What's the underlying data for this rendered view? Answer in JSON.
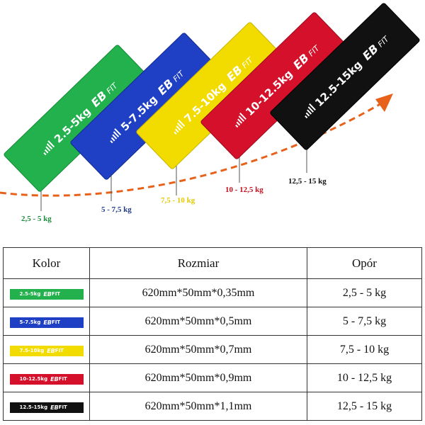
{
  "bands": [
    {
      "label": "2.5-5kg",
      "brand": "EB",
      "brand_suffix": "FIT",
      "color": "#22b14c",
      "resistance": "2,5 - 5 kg",
      "resistance_color": "#1b8a3a"
    },
    {
      "label": "5-7.5kg",
      "brand": "EB",
      "brand_suffix": "FIT",
      "color": "#1f3fc4",
      "resistance": "5 - 7,5 kg",
      "resistance_color": "#1f3a8a"
    },
    {
      "label": "7.5-10kg",
      "brand": "EB",
      "brand_suffix": "FIT",
      "color": "#f2dc00",
      "resistance": "7,5 - 10 kg",
      "resistance_color": "#e6c800"
    },
    {
      "label": "10-12.5kg",
      "brand": "EB",
      "brand_suffix": "FIT",
      "color": "#d5102a",
      "resistance": "10 - 12,5 kg",
      "resistance_color": "#c8101e"
    },
    {
      "label": "12.5-15kg",
      "brand": "EB",
      "brand_suffix": "FIT",
      "color": "#111111",
      "resistance": "12,5 - 15 kg",
      "resistance_color": "#111111"
    }
  ],
  "arrow_color": "#e8611a",
  "table": {
    "headers": [
      "Kolor",
      "Rozmiar",
      "Opór"
    ],
    "rows": [
      {
        "swatch_label": "2.5-5kg",
        "brand": "EB",
        "brand_suffix": "FIT",
        "color": "#22b14c",
        "size": "620mm*50mm*0,35mm",
        "resistance": "2,5 - 5 kg"
      },
      {
        "swatch_label": "5-7.5kg",
        "brand": "EB",
        "brand_suffix": "FIT",
        "color": "#1f3fc4",
        "size": "620mm*50mm*0,5mm",
        "resistance": "5 - 7,5 kg"
      },
      {
        "swatch_label": "7.5-10kg",
        "brand": "EB",
        "brand_suffix": "FIT",
        "color": "#f2dc00",
        "size": "620mm*50mm*0,7mm",
        "resistance": "7,5 - 10 kg"
      },
      {
        "swatch_label": "10-12.5kg",
        "brand": "EB",
        "brand_suffix": "FIT",
        "color": "#d5102a",
        "size": "620mm*50mm*0,9mm",
        "resistance": "10 - 12,5 kg"
      },
      {
        "swatch_label": "12.5-15kg",
        "brand": "EB",
        "brand_suffix": "FIT",
        "color": "#111111",
        "size": "620mm*50mm*1,1mm",
        "resistance": "12,5 - 15 kg"
      }
    ]
  }
}
